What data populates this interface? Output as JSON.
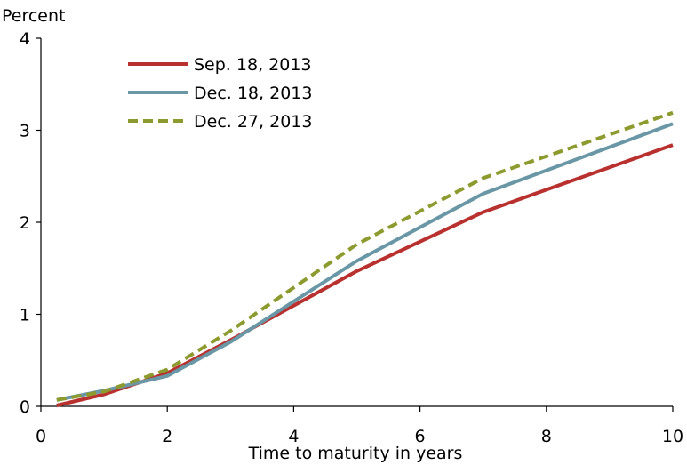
{
  "chart_data": {
    "type": "line",
    "title": "",
    "ylabel": "Percent",
    "xlabel": "Time to maturity in years",
    "xlim": [
      0,
      10
    ],
    "ylim": [
      0,
      4
    ],
    "xticks": [
      0,
      2,
      4,
      6,
      8,
      10
    ],
    "yticks": [
      0,
      1,
      2,
      3,
      4
    ],
    "grid": false,
    "legend_position": "top-left",
    "series": [
      {
        "name": "Sep. 18, 2013",
        "color": "#b8312f",
        "style": "solid",
        "x": [
          0.25,
          1,
          2,
          3,
          5,
          7,
          10
        ],
        "y": [
          0.01,
          0.13,
          0.36,
          0.72,
          1.47,
          2.11,
          2.84
        ]
      },
      {
        "name": "Dec. 18, 2013",
        "color": "#6a97a6",
        "style": "solid",
        "x": [
          0.25,
          1,
          2,
          3,
          5,
          7,
          10
        ],
        "y": [
          0.07,
          0.17,
          0.33,
          0.7,
          1.58,
          2.31,
          3.07
        ]
      },
      {
        "name": "Dec. 27, 2013",
        "color": "#8c9a2e",
        "style": "dashed",
        "x": [
          0.25,
          1,
          2,
          3,
          5,
          7,
          10
        ],
        "y": [
          0.07,
          0.16,
          0.4,
          0.82,
          1.76,
          2.48,
          3.19
        ]
      }
    ]
  }
}
